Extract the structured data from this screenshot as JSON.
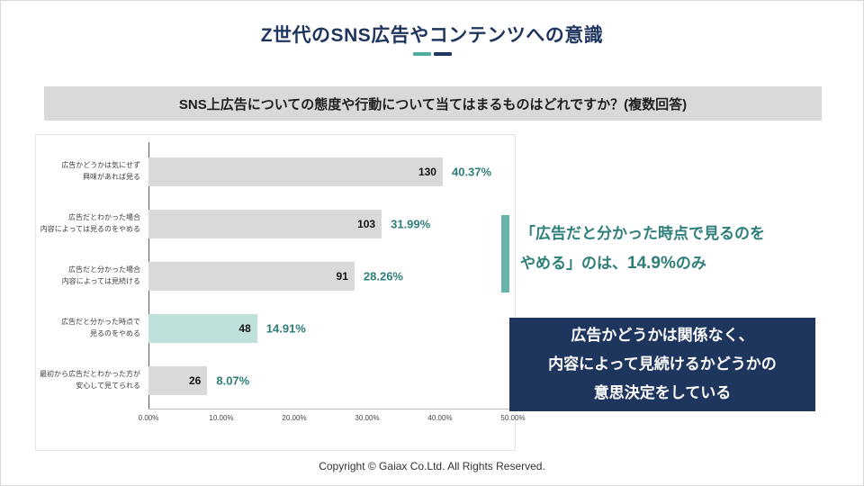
{
  "slide": {
    "title": "Z世代のSNS広告やコンテンツへの意識",
    "question": "SNS上広告についての態度や行動について当てはまるものはどれですか？(複数回答)",
    "footer": "Copyright © Gaiax Co.Ltd. All Rights Reserved."
  },
  "annotation": {
    "line1": "「広告だと分かった時点で見るのを",
    "line2_prefix": "やめる」のは、",
    "highlight": "14.9%",
    "line2_suffix": "のみ"
  },
  "callout": {
    "lines": [
      "広告かどうかは関係なく、",
      "内容によって見続けるかどうかの",
      "意思決定をしている"
    ]
  },
  "colors": {
    "navy": "#1e355e",
    "teal": "#2e7e79",
    "teal_light": "#bfe0db",
    "accent_teal": "#68b4ab",
    "bar_gray": "#d9d9d9"
  },
  "chart_data": {
    "type": "bar",
    "orientation": "horizontal",
    "title": "SNS上広告についての態度や行動について当てはまるものはどれですか？(複数回答)",
    "xlim": [
      0,
      50
    ],
    "x_ticks": [
      "0.00%",
      "10.00%",
      "20.00%",
      "30.00%",
      "40.00%",
      "50.00%"
    ],
    "highlight_index": 3,
    "rows": [
      {
        "label": [
          "広告かどうかは気にせず",
          "興味があれば見る"
        ],
        "count": 130,
        "percent": 40.37,
        "percent_label": "40.37%"
      },
      {
        "label": [
          "広告だとわかった場合",
          "内容によっては見るのをやめる"
        ],
        "count": 103,
        "percent": 31.99,
        "percent_label": "31.99%"
      },
      {
        "label": [
          "広告だと分かった場合",
          "内容によっては見続ける"
        ],
        "count": 91,
        "percent": 28.26,
        "percent_label": "28.26%"
      },
      {
        "label": [
          "広告だと分かった時点で",
          "見るのをやめる"
        ],
        "count": 48,
        "percent": 14.91,
        "percent_label": "14.91%"
      },
      {
        "label": [
          "最初から広告だとわかった方が",
          "安心して見てられる"
        ],
        "count": 26,
        "percent": 8.07,
        "percent_label": "8.07%"
      }
    ]
  }
}
